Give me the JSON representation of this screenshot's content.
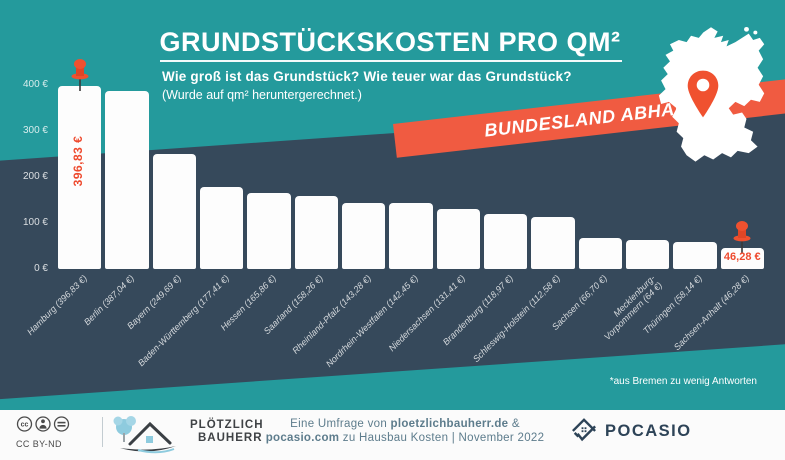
{
  "header": {
    "title": "GRUNDSTÜCKSKOSTEN PRO QM²",
    "subtitle_question": "Wie groß ist das Grundstück? Wie teuer war das Grundstück?",
    "subtitle_note": "(Wurde auf qm² heruntergerechnet.)",
    "banner_label": "BUNDESLAND ABHÄNGIG"
  },
  "chart_data": {
    "type": "bar",
    "title": "Grundstückskosten pro qm²",
    "xlabel": "",
    "ylabel": "",
    "unit": "€",
    "ylim": [
      0,
      400
    ],
    "grid": false,
    "yticks": [
      {
        "value": 400,
        "label": "400 €"
      },
      {
        "value": 300,
        "label": "300 €"
      },
      {
        "value": 200,
        "label": "200 €"
      },
      {
        "value": 100,
        "label": "100 €"
      },
      {
        "value": 0,
        "label": "0 €"
      }
    ],
    "bars": [
      {
        "category": "Hamburg",
        "value": 396.83,
        "label": "Hamburg (396,83 €)",
        "annotation": "396,83 €",
        "annotation_orientation": "vertical",
        "pinned": true
      },
      {
        "category": "Berlin",
        "value": 387.04,
        "label": "Berlin (387,04 €)"
      },
      {
        "category": "Bayern",
        "value": 249.69,
        "label": "Bayern (249,69 €)"
      },
      {
        "category": "Baden-Württemberg",
        "value": 177.41,
        "label": "Baden-Württemberg (177,41 €)"
      },
      {
        "category": "Hessen",
        "value": 165.86,
        "label": "Hessen (165,86 €)"
      },
      {
        "category": "Saarland",
        "value": 158.26,
        "label": "Saarland (158,26 €)"
      },
      {
        "category": "Rheinland-Pfalz",
        "value": 143.28,
        "label": "Rheinland-Pfalz (143,28 €)"
      },
      {
        "category": "Nordrhein-Westfalen",
        "value": 142.45,
        "label": "Nordrhein-Westfalen (142,45 €)"
      },
      {
        "category": "Niedersachsen",
        "value": 131.41,
        "label": "Niedersachsen (131,41 €)"
      },
      {
        "category": "Brandenburg",
        "value": 118.97,
        "label": "Brandenburg (118,97 €)"
      },
      {
        "category": "Schleswig-Holstein",
        "value": 112.58,
        "label": "Schleswig-Holstein (112,58 €)"
      },
      {
        "category": "Sachsen",
        "value": 66.7,
        "label": "Sachsen (66,70 €)"
      },
      {
        "category": "Mecklenburg-Vorpommern",
        "value": 64,
        "label": "Mecklenburg-\nVorpommern (64 €)"
      },
      {
        "category": "Thüringen",
        "value": 58.14,
        "label": "Thüringen (58,14 €)"
      },
      {
        "category": "Sachsen-Anhalt",
        "value": 46.28,
        "label": "Sachsen-Anhalt (46,28 €)",
        "annotation": "46,28 €",
        "annotation_orientation": "horizontal",
        "pinned": true
      }
    ],
    "footnote": "*aus Bremen zu wenig Antworten",
    "legend": null
  },
  "footer": {
    "license": "CC BY-ND",
    "brand_left": {
      "line1": "PLÖTZLICH",
      "line2": "BAUHERR"
    },
    "credit": {
      "l1_normal": "Eine Umfrage von ",
      "l1_bold": "ploetzlichbauherr.de",
      "l1_tail": " &",
      "l2_bold": "pocasio.com",
      "l2_tail": " zu Hausbau Kosten | November 2022"
    },
    "brand_right": "POCASIO"
  },
  "colors": {
    "teal": "#249a9c",
    "navy": "#36495b",
    "accent_orange": "#f05b41",
    "annotation_red": "#ee4a2e",
    "bar_white": "#fdfdfd"
  }
}
